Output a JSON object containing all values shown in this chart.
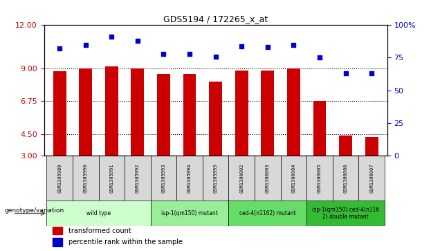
{
  "title": "GDS5194 / 172265_x_at",
  "samples": [
    "GSM1305989",
    "GSM1305990",
    "GSM1305991",
    "GSM1305992",
    "GSM1305993",
    "GSM1305994",
    "GSM1305995",
    "GSM1306002",
    "GSM1306003",
    "GSM1306004",
    "GSM1306005",
    "GSM1306006",
    "GSM1306007"
  ],
  "transformed_count": [
    8.8,
    9.0,
    9.15,
    9.0,
    8.65,
    8.62,
    8.1,
    8.85,
    8.85,
    9.0,
    6.75,
    4.4,
    4.3
  ],
  "percentile_rank": [
    82,
    85,
    91,
    88,
    78,
    78,
    76,
    84,
    83,
    85,
    75,
    63,
    63
  ],
  "ylim_left": [
    3,
    12
  ],
  "ylim_right": [
    0,
    100
  ],
  "yticks_left": [
    3,
    4.5,
    6.75,
    9,
    12
  ],
  "yticks_right": [
    0,
    25,
    50,
    75,
    100
  ],
  "groups": [
    {
      "label": "wild type",
      "start": 0,
      "end": 3,
      "color": "#ccffcc"
    },
    {
      "label": "isp-1(qm150) mutant",
      "start": 4,
      "end": 6,
      "color": "#99ee99"
    },
    {
      "label": "ced-4(n1162) mutant",
      "start": 7,
      "end": 9,
      "color": "#66dd66"
    },
    {
      "label": "isp-1(qm150) ced-4(n116\n2) double mutant",
      "start": 10,
      "end": 12,
      "color": "#33bb33"
    }
  ],
  "bar_color": "#cc0000",
  "dot_color": "#0000cc",
  "left_axis_color": "#cc0000",
  "right_axis_color": "#0000cc",
  "legend_red_label": "transformed count",
  "legend_blue_label": "percentile rank within the sample",
  "xlabel_genotype": "genotype/variation",
  "sample_bg_color": "#d8d8d8"
}
